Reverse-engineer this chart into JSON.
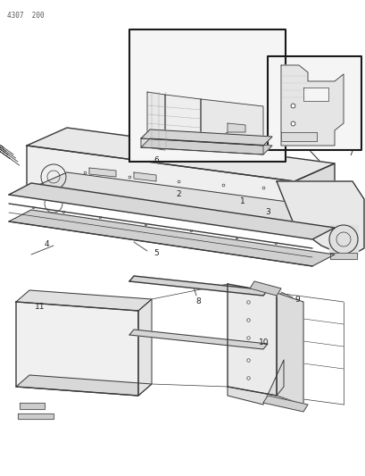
{
  "page_id": "4307  200",
  "bg_color": "#ffffff",
  "line_color": "#3a3a3a",
  "figsize": [
    4.1,
    5.33
  ],
  "dpi": 100
}
